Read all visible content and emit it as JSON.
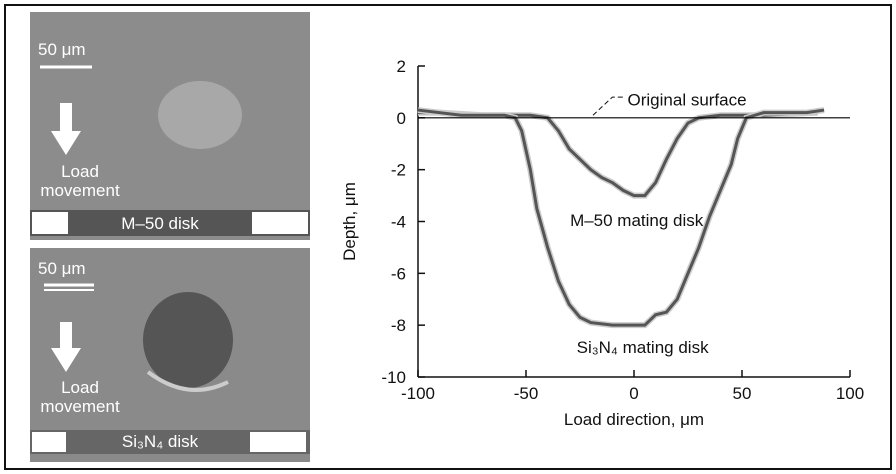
{
  "images": [
    {
      "scale_bar": "50 μm",
      "arrow_label": "Load movement",
      "caption": "M–50 disk"
    },
    {
      "scale_bar": "50 μm",
      "arrow_label": "Load movement",
      "caption": "Si₃N₄ disk"
    }
  ],
  "chart_data": {
    "type": "line",
    "x_label": "Load direction, μm",
    "y_label": "Depth, μm",
    "xlim": [
      -100,
      100
    ],
    "xticks": [
      -100,
      -50,
      0,
      50,
      100
    ],
    "ylim": [
      -10,
      2
    ],
    "yticks": [
      -10,
      -8,
      -6,
      -4,
      -2,
      0,
      2
    ],
    "series": [
      {
        "name": "M–50 mating disk",
        "color": "#555555",
        "x": [
          -100,
          -90,
          -70,
          -55,
          -48,
          -40,
          -35,
          -30,
          -25,
          -20,
          -15,
          -10,
          -5,
          0,
          5,
          10,
          15,
          20,
          25,
          30,
          40,
          60,
          85
        ],
        "values": [
          0.2,
          0.2,
          0.1,
          0.1,
          0.1,
          0,
          -0.5,
          -1.2,
          -1.6,
          -2.0,
          -2.3,
          -2.5,
          -2.8,
          -3.0,
          -3.0,
          -2.5,
          -1.6,
          -0.8,
          -0.2,
          0,
          0.1,
          0.1,
          0.2
        ]
      },
      {
        "name": "Si₃N₄ mating disk",
        "color": "#555555",
        "x": [
          -100,
          -80,
          -60,
          -55,
          -52,
          -48,
          -45,
          -40,
          -35,
          -30,
          -25,
          -20,
          -10,
          0,
          5,
          10,
          15,
          20,
          25,
          30,
          35,
          40,
          45,
          48,
          52,
          60,
          80,
          88
        ],
        "values": [
          0.3,
          0.1,
          0.1,
          0,
          -0.5,
          -2,
          -3.5,
          -5,
          -6.3,
          -7.2,
          -7.7,
          -7.9,
          -8,
          -8,
          -8,
          -7.6,
          -7.5,
          -7,
          -6,
          -5,
          -3.8,
          -2.8,
          -1.8,
          -0.8,
          0,
          0.2,
          0.2,
          0.3
        ]
      },
      {
        "name": "Original surface",
        "color": "#000000",
        "x": [
          -100,
          100
        ],
        "values": [
          0,
          0
        ]
      }
    ]
  }
}
